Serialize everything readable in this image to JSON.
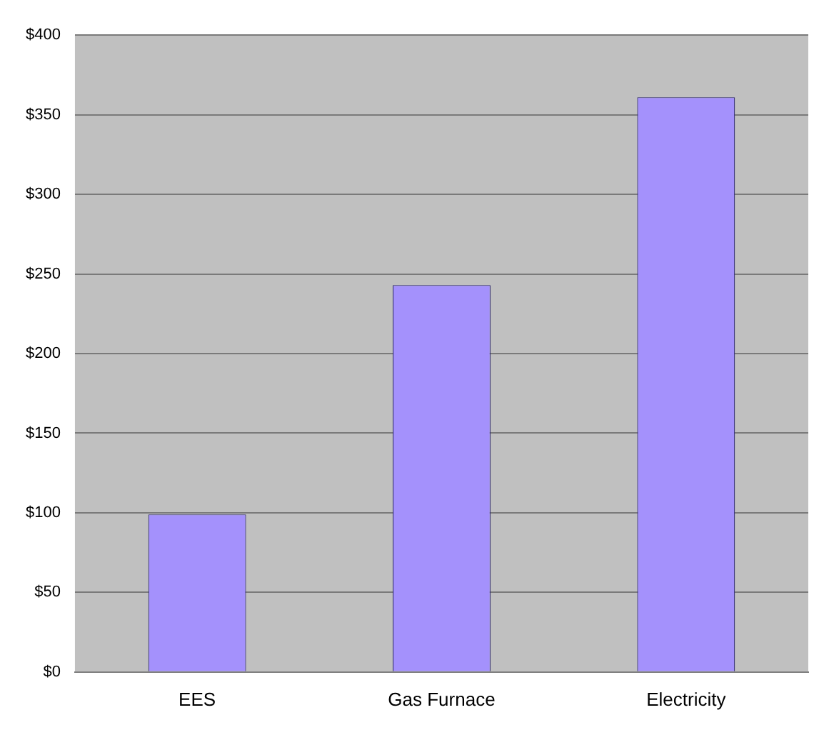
{
  "chart_data": {
    "type": "bar",
    "categories": [
      "EES",
      "Gas Furnace",
      "Electricity"
    ],
    "values": [
      99,
      243,
      361
    ],
    "color": "#a491fc",
    "ylim": [
      0,
      400
    ],
    "yticks": [
      {
        "value": 0,
        "label": "$0"
      },
      {
        "value": 50,
        "label": "$50"
      },
      {
        "value": 100,
        "label": "$100"
      },
      {
        "value": 150,
        "label": "$150"
      },
      {
        "value": 200,
        "label": "$200"
      },
      {
        "value": 250,
        "label": "$250"
      },
      {
        "value": 300,
        "label": "$300"
      },
      {
        "value": 350,
        "label": "$350"
      },
      {
        "value": 400,
        "label": "$400"
      }
    ],
    "grid": "y",
    "legend": false
  }
}
